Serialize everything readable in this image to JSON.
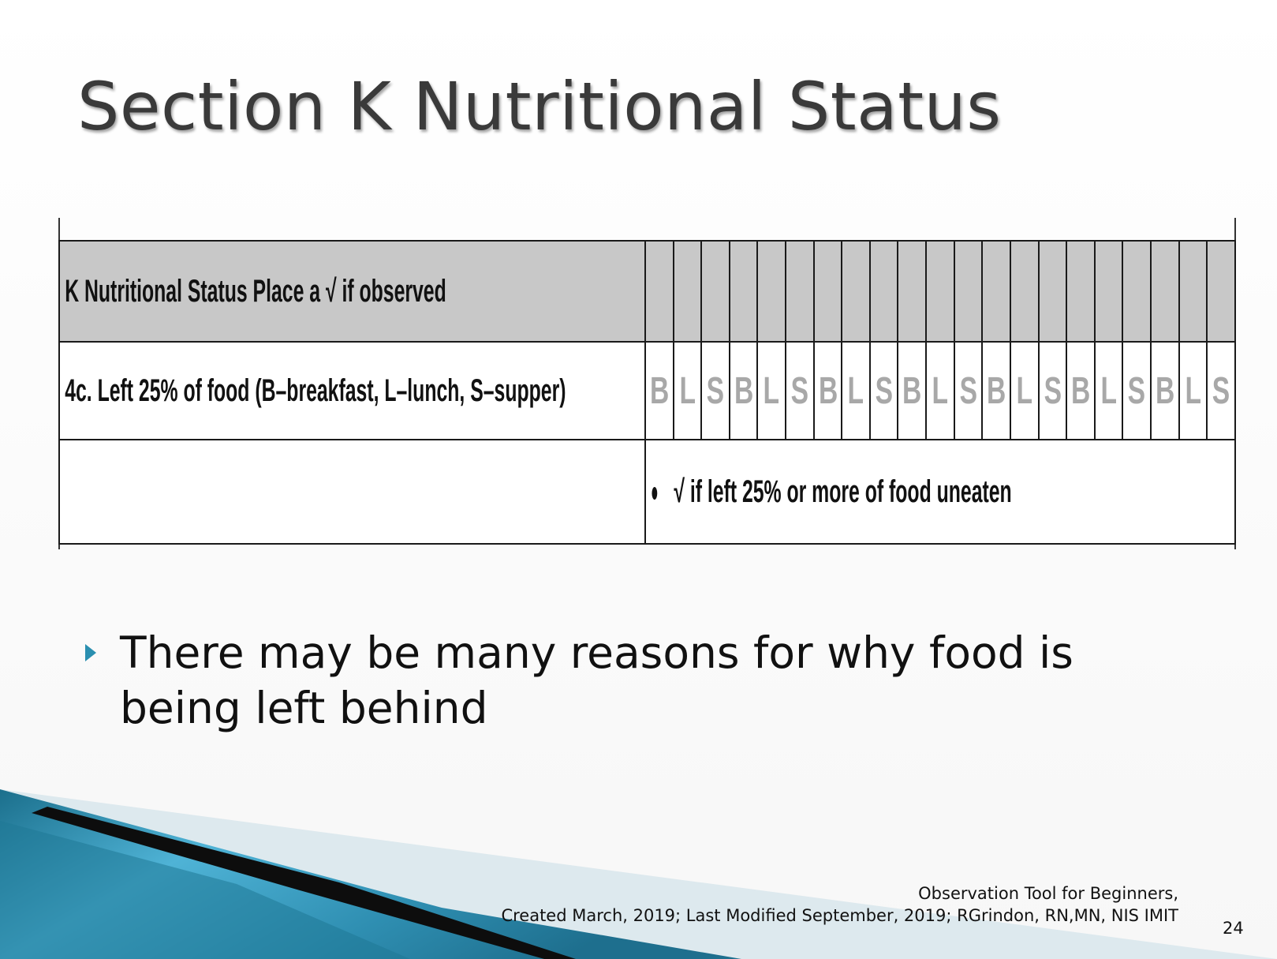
{
  "slide": {
    "title": "Section K Nutritional Status",
    "form": {
      "header_label": "K Nutritional Status Place a √ if observed",
      "row_label": "4c. Left 25% of food (B–breakfast, L–lunch, S–supper)",
      "meals": [
        "B",
        "L",
        "S",
        "B",
        "L",
        "S",
        "B",
        "L",
        "S",
        "B",
        "L",
        "S",
        "B",
        "L",
        "S",
        "B",
        "L",
        "S",
        "B",
        "L",
        "S"
      ],
      "note": "√ if left 25% or more of food uneaten"
    },
    "bullet": "There may be many reasons for why food is being left behind",
    "footer": {
      "line1": "Observation Tool for Beginners,",
      "line2": "Created March, 2019; Last  Modified September, 2019;  RGrindon, RN,MN, NIS IMIT"
    },
    "page_number": "24",
    "colors": {
      "accent": "#2a8fb0",
      "header_fill": "#c8c8c8",
      "meal_letters": "#a8a8a8"
    }
  }
}
